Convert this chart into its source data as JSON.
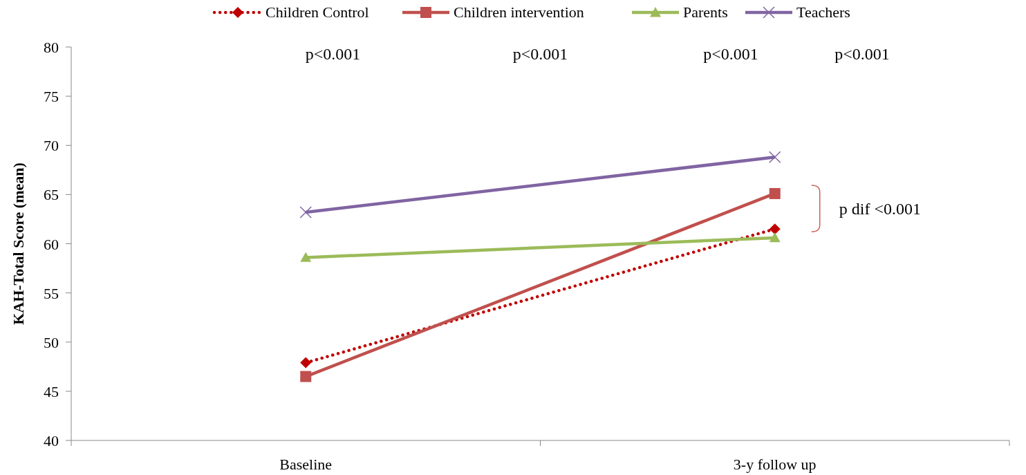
{
  "chart_data": {
    "type": "line",
    "ylabel": "KAH-Total Score (mean)",
    "categories": [
      "Baseline",
      "3-y follow up"
    ],
    "series": [
      {
        "name": "Children Control",
        "color": "#c00000",
        "values": [
          47.9,
          61.5
        ],
        "marker": "diamond",
        "line_style": "dotted"
      },
      {
        "name": "Children intervention",
        "color": "#c0504d",
        "values": [
          46.5,
          65.1
        ],
        "marker": "square",
        "line_style": "solid"
      },
      {
        "name": "Parents",
        "color": "#9bbb59",
        "values": [
          58.6,
          60.6
        ],
        "marker": "triangle",
        "line_style": "solid"
      },
      {
        "name": "Teachers",
        "color": "#8064a2",
        "values": [
          63.2,
          68.8
        ],
        "marker": "cross",
        "line_style": "solid"
      }
    ],
    "ylim": [
      40,
      80
    ],
    "yticks": [
      40,
      45,
      50,
      55,
      60,
      65,
      70,
      75,
      80
    ],
    "legend": "top",
    "grid": false,
    "annotations": [
      "p<0.001",
      "p<0.001",
      "p<0.001",
      "p<0.001",
      "p dif <0.001"
    ]
  }
}
